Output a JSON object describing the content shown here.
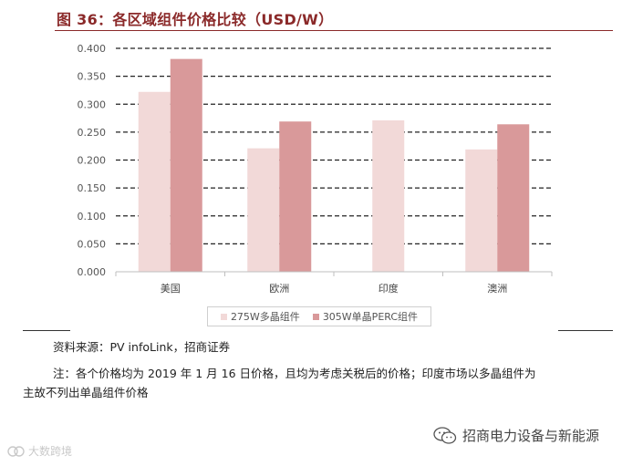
{
  "title": "图 36：各区域组件价格比较（USD/W）",
  "chart_data": {
    "type": "bar",
    "categories": [
      "美国",
      "欧洲",
      "印度",
      "澳洲"
    ],
    "series": [
      {
        "name": "275W多晶组件",
        "color": "#f2d9d8",
        "values": [
          0.322,
          0.221,
          0.271,
          0.219
        ]
      },
      {
        "name": "305W单晶PERC组件",
        "color": "#d9999a",
        "values": [
          0.381,
          0.269,
          null,
          0.264
        ]
      }
    ],
    "y_ticks": [
      "0.000",
      "0.050",
      "0.100",
      "0.150",
      "0.200",
      "0.250",
      "0.300",
      "0.350",
      "0.400"
    ],
    "ylim": [
      0,
      0.4
    ],
    "grid": true,
    "grid_style": "dashed",
    "legend_position": "bottom-center"
  },
  "source": "资料来源：PV infoLink，招商证券",
  "note": {
    "line1": "注：各个价格均为 2019 年 1 月 16 日价格，且均为考虑关税后的价格；印度市场以多晶组件为",
    "line2": "主故不列出单晶组件价格"
  },
  "footer": {
    "brand": "招商电力设备与新能源",
    "brand_icon": "wechat-icon"
  },
  "watermark": {
    "text": "大数跨境",
    "icon": "watermark-logo-icon"
  }
}
